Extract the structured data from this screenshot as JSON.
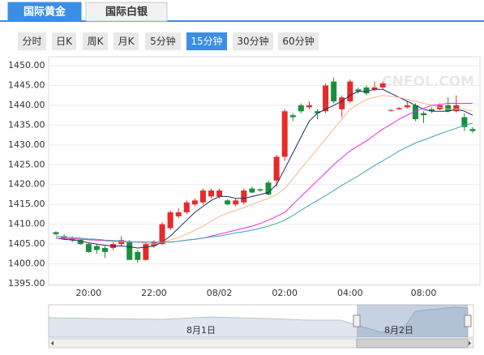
{
  "tabs": [
    "国际黄金",
    "国际白银"
  ],
  "active_tab": 0,
  "periods": [
    "分时",
    "日K",
    "周K",
    "月K",
    "5分钟",
    "15分钟",
    "30分钟",
    "60分钟"
  ],
  "active_period": 5,
  "watermark": "CNFOL.COM",
  "navigator": {
    "labels": [
      "8月1日",
      "8月2日"
    ]
  },
  "chart_data": {
    "type": "candlestick",
    "categories": [
      null,
      null,
      null,
      null,
      "20:00",
      null,
      null,
      null,
      null,
      null,
      null,
      null,
      "22:00",
      null,
      null,
      null,
      null,
      null,
      null,
      null,
      "08/02",
      null,
      null,
      null,
      null,
      null,
      null,
      null,
      "02:00",
      null,
      null,
      null,
      null,
      null,
      null,
      null,
      "04:00",
      null,
      null,
      null,
      null,
      null,
      null,
      null,
      null,
      "08:00",
      null,
      null,
      null,
      null,
      null,
      null
    ],
    "open": [
      1408,
      1407,
      1406.5,
      1406,
      1405,
      1404.5,
      1404,
      1404,
      1405,
      1405.5,
      1403,
      1401,
      1404.5,
      1405,
      1409,
      1412,
      1413,
      1415,
      1415.5,
      1417,
      1417,
      1416,
      1415,
      1415.5,
      1419,
      1418.8,
      1420.5,
      1421,
      1427,
      1437.5,
      1440,
      1439.5,
      1438.5,
      1438.5,
      1446,
      1439,
      1441,
      1444,
      1444.5,
      1444,
      1444.5,
      1438.6,
      1439,
      1439.5,
      1440,
      1438,
      1439,
      1439,
      1440,
      1438.5,
      1437,
      1434
    ],
    "high": [
      1408.2,
      1407.5,
      1407,
      1406.3,
      1405.3,
      1405,
      1404.5,
      1405.5,
      1407,
      1406,
      1403.5,
      1405.5,
      1406,
      1410.5,
      1413.5,
      1414,
      1416,
      1416.5,
      1419,
      1419,
      1419,
      1416.3,
      1416.5,
      1419,
      1419.5,
      1419,
      1421,
      1427.5,
      1439,
      1438,
      1440.5,
      1441,
      1439,
      1445.5,
      1447,
      1442.5,
      1446.5,
      1444.5,
      1445,
      1446,
      1446,
      1439,
      1439.5,
      1441,
      1440.5,
      1438.5,
      1439.5,
      1440.5,
      1442,
      1442.5,
      1438,
      1434.5
    ],
    "low": [
      1407.2,
      1406,
      1405.5,
      1404.8,
      1402.8,
      1402.5,
      1401.5,
      1403.5,
      1404.5,
      1401,
      1400.3,
      1400.8,
      1404,
      1404.8,
      1408.5,
      1411.5,
      1412.5,
      1414.5,
      1415,
      1416.5,
      1416.5,
      1414.8,
      1414.5,
      1415,
      1417.8,
      1418.2,
      1417.3,
      1419.5,
      1426,
      1436,
      1438,
      1439,
      1436.5,
      1438,
      1440.5,
      1437,
      1440.5,
      1443,
      1442.5,
      1443.5,
      1444,
      1438.4,
      1438.8,
      1439.2,
      1436,
      1435.5,
      1438,
      1438.8,
      1438.2,
      1438.2,
      1433.5,
      1433
    ],
    "close": [
      1407.5,
      1406.5,
      1406,
      1405,
      1403,
      1403.5,
      1403,
      1405,
      1406,
      1401,
      1401,
      1405,
      1405.5,
      1410,
      1413,
      1413,
      1415.5,
      1416,
      1418.5,
      1418.5,
      1418.5,
      1415,
      1416,
      1418.5,
      1418,
      1418.5,
      1417.5,
      1427,
      1438.5,
      1437,
      1438.5,
      1440,
      1438,
      1445,
      1441,
      1442,
      1446,
      1443.5,
      1443,
      1444.5,
      1445.5,
      1438.8,
      1439.3,
      1440,
      1436.5,
      1437.5,
      1438.5,
      1440,
      1438.5,
      1440,
      1434.5,
      1433.5
    ],
    "up_color": "#e52b2b",
    "down_color": "#1a8f3c",
    "lines": [
      {
        "color": "#1c2a6e",
        "values": [
          1406.5,
          1406.2,
          1406,
          1405.8,
          1405.3,
          1405,
          1404.7,
          1404.5,
          1404.5,
          1404.3,
          1404,
          1404.2,
          1404.5,
          1405.5,
          1407,
          1409,
          1411,
          1413,
          1414.5,
          1416,
          1417,
          1417,
          1416.5,
          1416.5,
          1417,
          1417.5,
          1418,
          1420,
          1424,
          1428,
          1432,
          1436,
          1438,
          1439,
          1440,
          1441,
          1442.5,
          1443.5,
          1443.5,
          1444,
          1444,
          1443,
          1442,
          1441,
          1440,
          1439,
          1438.5,
          1438.5,
          1438.5,
          1439,
          1438.5,
          1437.5
        ]
      },
      {
        "color": "#f0b98a",
        "values": [
          1407,
          1406.8,
          1406.5,
          1406.3,
          1406,
          1406,
          1405.8,
          1405.7,
          1405.6,
          1405.5,
          1405.5,
          1405.2,
          1405,
          1405.5,
          1406,
          1406.7,
          1407.5,
          1408.5,
          1409.5,
          1410.8,
          1412,
          1412.8,
          1413.5,
          1414.2,
          1415,
          1415.8,
          1416.5,
          1417.5,
          1419,
          1421.5,
          1424,
          1426.5,
          1429,
          1431.5,
          1434,
          1436.5,
          1439,
          1440.3,
          1441.5,
          1442,
          1442.5,
          1442.3,
          1442,
          1441.5,
          1441,
          1440.5,
          1440,
          1439.5,
          1439,
          1439,
          1439,
          1438.5
        ]
      },
      {
        "color": "#e62ee0",
        "values": [
          1406.5,
          1406.4,
          1406.3,
          1406.2,
          1406.1,
          1406,
          1405.9,
          1405.8,
          1405.7,
          1405.6,
          1405.5,
          1405.5,
          1405.5,
          1405.5,
          1405.5,
          1405.7,
          1406,
          1406.2,
          1406.5,
          1407,
          1407.5,
          1408,
          1408.5,
          1409,
          1409.5,
          1410.2,
          1411,
          1412,
          1413,
          1415,
          1417,
          1419,
          1421,
          1423,
          1425,
          1426.8,
          1428.5,
          1429.8,
          1431,
          1432.5,
          1434,
          1435.2,
          1436.5,
          1437.5,
          1438.5,
          1439.2,
          1440,
          1440.2,
          1440.5,
          1440.5,
          1440.5,
          1440.5
        ]
      },
      {
        "color": "#3aa3b5",
        "values": [
          1407,
          1406.8,
          1406.6,
          1406.5,
          1406.3,
          1406.2,
          1406,
          1405.9,
          1405.8,
          1405.6,
          1405.5,
          1405.5,
          1405.5,
          1405.5,
          1405.5,
          1405.7,
          1406,
          1406.2,
          1406.5,
          1406.8,
          1407,
          1407.4,
          1407.8,
          1408.1,
          1408.5,
          1409,
          1409.5,
          1410.2,
          1411,
          1412.2,
          1413.5,
          1414.8,
          1416,
          1417.2,
          1418.5,
          1419.8,
          1421,
          1422.2,
          1423.5,
          1424.8,
          1426,
          1427.2,
          1428.5,
          1429.5,
          1430.5,
          1431.2,
          1432,
          1432.8,
          1433.5,
          1434.2,
          1435,
          1435.5
        ]
      }
    ],
    "ylim": [
      1395,
      1450
    ],
    "yticks": [
      {
        "value": 1395,
        "label": "1395.00"
      },
      {
        "value": 1400,
        "label": "1400.00"
      },
      {
        "value": 1405,
        "label": "1405.00"
      },
      {
        "value": 1410,
        "label": "1410.00"
      },
      {
        "value": 1415,
        "label": "1415.00"
      },
      {
        "value": 1420,
        "label": "1420.00"
      },
      {
        "value": 1425,
        "label": "1425.00"
      },
      {
        "value": 1430,
        "label": "1430.00"
      },
      {
        "value": 1435,
        "label": "1435.00"
      },
      {
        "value": 1440,
        "label": "1440.00"
      },
      {
        "value": 1445,
        "label": "1445.00"
      },
      {
        "value": 1450,
        "label": "1450.00"
      }
    ],
    "grid": true
  }
}
